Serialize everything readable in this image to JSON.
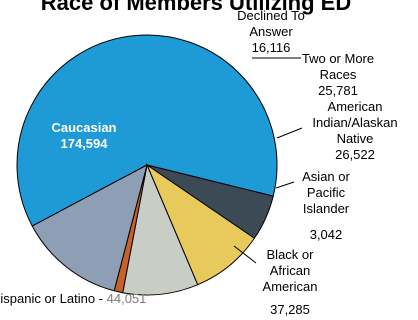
{
  "chart_data": {
    "type": "pie",
    "title": "Race of Members Utilizing ED",
    "slices": [
      {
        "name": "Caucasian",
        "value": 174594,
        "label": "174,594",
        "color": "#1e9ad6"
      },
      {
        "name": "Declined To Answer",
        "value": 16116,
        "label": "16,116",
        "color": "#3c4a56"
      },
      {
        "name": "Two or More Races",
        "value": 25781,
        "label": "25,781",
        "color": "#e7c95c"
      },
      {
        "name": "American Indian/Alaskan Native",
        "value": 26522,
        "label": "26,522",
        "color": "#c8cdc6"
      },
      {
        "name": "Asian or Pacific Islander",
        "value": 3042,
        "label": "3,042",
        "color": "#c8602a"
      },
      {
        "name": "Black or African American",
        "value": 37285,
        "label": "37,285",
        "color": "#8e9fb5"
      }
    ],
    "note": {
      "prefix": "Hispanic or Latino - ",
      "value": "44,051"
    },
    "legend": "none"
  }
}
